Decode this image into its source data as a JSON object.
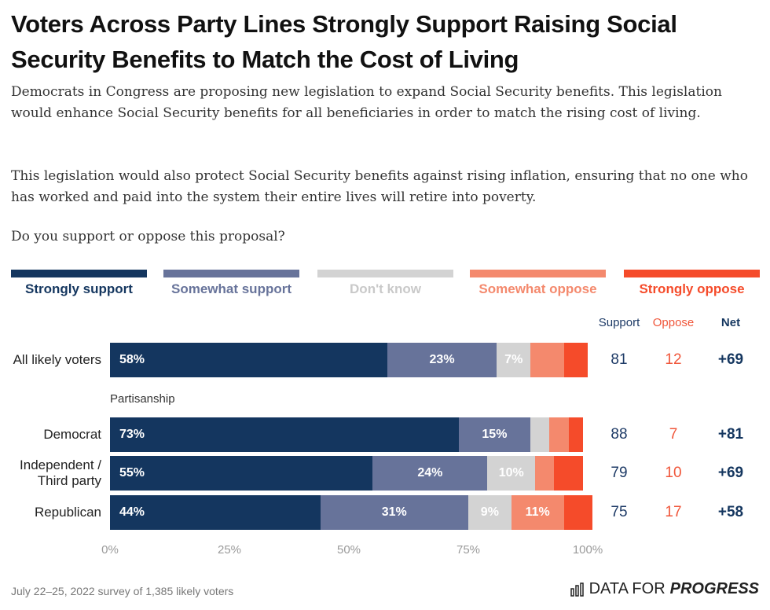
{
  "chart_data": {
    "type": "stacked-bar-horizontal",
    "title": "Voters Across Party Lines Strongly Support Raising Social Security Benefits to Match the Cost of Living",
    "subtitle": [
      "Democrats in Congress are proposing new legislation to expand Social Security benefits. This legislation would enhance Social Security benefits for all beneficiaries in order to match the rising cost of living.",
      "This legislation would also protect Social Security benefits against rising inflation, ensuring that no one who has worked and paid into the system their entire lives will retire into poverty.",
      "Do you support or oppose this proposal?"
    ],
    "categories": [
      "All likely voters",
      "Democrat",
      "Independent / Third party",
      "Republican"
    ],
    "group_label": "Partisanship",
    "series": [
      {
        "name": "Strongly support",
        "color": "#14365f",
        "values": [
          58,
          73,
          55,
          44
        ],
        "value_labels": [
          "58%",
          "73%",
          "55%",
          "44%"
        ]
      },
      {
        "name": "Somewhat support",
        "color": "#67739a",
        "values": [
          23,
          15,
          24,
          31
        ],
        "value_labels": [
          "23%",
          "15%",
          "24%",
          "31%"
        ]
      },
      {
        "name": "Don't know",
        "color": "#d3d3d3",
        "values": [
          7,
          4,
          10,
          9
        ],
        "value_labels": [
          "7%",
          null,
          "10%",
          "9%"
        ]
      },
      {
        "name": "Somewhat oppose",
        "color": "#f4896d",
        "values": [
          7,
          4,
          4,
          11
        ],
        "value_labels": [
          null,
          null,
          null,
          "11%"
        ]
      },
      {
        "name": "Strongly oppose",
        "color": "#f54b2a",
        "values": [
          5,
          3,
          6,
          6
        ]
      }
    ],
    "xlim": [
      0,
      100
    ],
    "xticks": [
      {
        "value": 0,
        "label": "0%"
      },
      {
        "value": 25,
        "label": "25%"
      },
      {
        "value": 50,
        "label": "50%"
      },
      {
        "value": 75,
        "label": "75%"
      },
      {
        "value": 100,
        "label": "100%"
      }
    ],
    "summary": {
      "headers": [
        "Support",
        "Oppose",
        "Net"
      ],
      "support": [
        81,
        88,
        79,
        75
      ],
      "oppose": [
        12,
        7,
        10,
        17
      ],
      "net": [
        69,
        81,
        69,
        58
      ],
      "net_labels": [
        "+69",
        "+81",
        "+69",
        "+58"
      ]
    },
    "footnote": "July 22–25, 2022 survey of 1,385 likely voters",
    "brand": [
      "DATA FOR",
      "PROGRESS"
    ]
  }
}
